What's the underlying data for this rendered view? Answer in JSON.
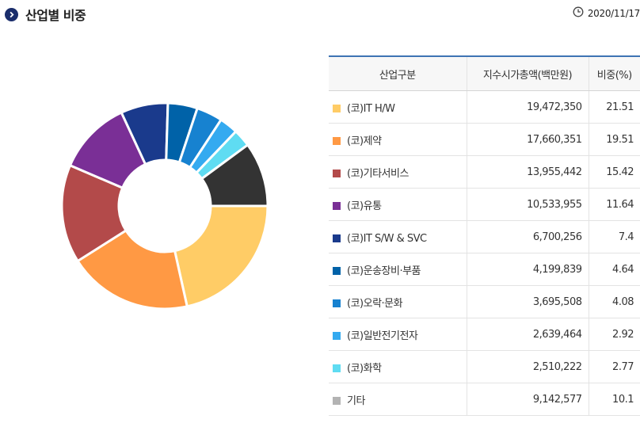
{
  "header": {
    "title": "산업별 비중",
    "date": "2020/11/17"
  },
  "icons": {
    "title_bullet": "chevron-right-circle-icon",
    "date_icon": "clock-icon"
  },
  "table": {
    "headers": [
      "산업구분",
      "지수시가총액(백만원)",
      "비중(%)"
    ]
  },
  "chart_data": {
    "type": "pie",
    "style": "donut",
    "categories": [
      "(코)IT H/W",
      "(코)제약",
      "(코)기타서비스",
      "(코)유통",
      "(코)IT S/W & SVC",
      "(코)운송장비·부품",
      "(코)오락·문화",
      "(코)일반전기전자",
      "(코)화학",
      "기타"
    ],
    "market_cap": [
      "19,472,350",
      "17,660,351",
      "13,955,442",
      "10,533,955",
      "6,700,256",
      "4,199,839",
      "3,695,508",
      "2,639,464",
      "2,510,222",
      "9,142,577"
    ],
    "percent_labels": [
      "21.51",
      "19.51",
      "15.42",
      "11.64",
      "7.4",
      "4.64",
      "4.08",
      "2.92",
      "2.77",
      "10.1"
    ],
    "values": [
      21.51,
      19.51,
      15.42,
      11.64,
      7.4,
      4.64,
      4.08,
      2.92,
      2.77,
      10.1
    ],
    "legend_colors": [
      "#ffcc66",
      "#ff9944",
      "#b34a4a",
      "#7a2f96",
      "#1a3a8c",
      "#0062a8",
      "#1782d0",
      "#34aaf0",
      "#5fdcf2",
      "#b3b3b3"
    ],
    "slice_colors": [
      "#ffcc66",
      "#ff9944",
      "#b34a4a",
      "#7a2f96",
      "#1a3a8c",
      "#0062a8",
      "#1782d0",
      "#34aaf0",
      "#5fdcf2",
      "#333333"
    ],
    "legend_placement": "right (table)"
  }
}
